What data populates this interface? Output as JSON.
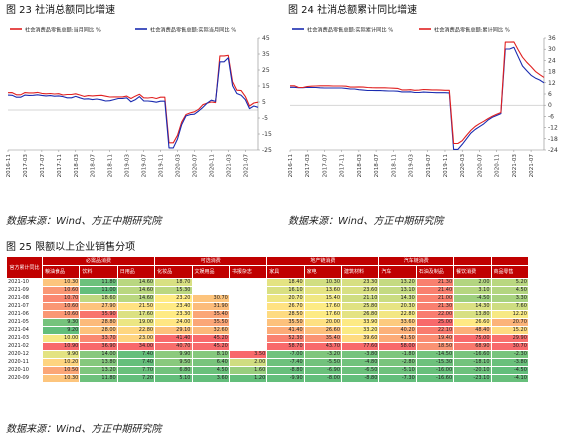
{
  "figures": {
    "fig23": {
      "title": "图 23   社消总额同比增速",
      "source": "数据来源：Wind、方正中期研究院"
    },
    "fig24": {
      "title": "图 24   社消总额累计同比增速",
      "source": "数据来源：Wind、方正中期研究院"
    },
    "fig25": {
      "title": "图 25   限额以上企业销售分项",
      "source": "数据来源：Wind、方正中期研究院"
    }
  },
  "colors": {
    "red": "#e02020",
    "blue": "#1a2bb0",
    "axis": "#666666",
    "header": "#c00000"
  },
  "chart_data": [
    {
      "type": "line",
      "x": [
        "2016-11",
        "2016-12",
        "2017-01",
        "2017-02",
        "2017-03",
        "2017-04",
        "2017-05",
        "2017-06",
        "2017-07",
        "2017-08",
        "2017-09",
        "2017-10",
        "2017-11",
        "2017-12",
        "2018-01",
        "2018-02",
        "2018-03",
        "2018-04",
        "2018-05",
        "2018-06",
        "2018-07",
        "2018-08",
        "2018-09",
        "2018-10",
        "2018-11",
        "2018-12",
        "2019-01",
        "2019-02",
        "2019-03",
        "2019-04",
        "2019-05",
        "2019-06",
        "2019-07",
        "2019-08",
        "2019-09",
        "2019-10",
        "2019-11",
        "2019-12",
        "2020-01",
        "2020-02",
        "2020-03",
        "2020-04",
        "2020-05",
        "2020-06",
        "2020-07",
        "2020-08",
        "2020-09",
        "2020-10",
        "2020-11",
        "2020-12",
        "2021-01",
        "2021-02",
        "2021-03",
        "2021-04",
        "2021-05",
        "2021-06",
        "2021-07",
        "2021-08",
        "2021-09",
        "2021-10"
      ],
      "xticks": [
        "2016-11",
        "2017-03",
        "2017-07",
        "2017-11",
        "2018-03",
        "2018-07",
        "2018-11",
        "2019-03",
        "2019-07",
        "2019-11",
        "2020-03",
        "2020-07",
        "2020-11",
        "2021-03",
        "2021-07"
      ],
      "x_tick_labels": [
        "2016-11",
        "2017-03",
        "2017-07",
        "2017-11",
        "2018-03",
        "2018-07",
        "2018-11",
        "2019-03",
        "2019-07",
        "2019-11",
        "2020-03",
        "2020-07",
        "2020-11",
        "2021-03",
        "2021-07"
      ],
      "ylim": [
        -25,
        45
      ],
      "yticks": [
        -25,
        -15,
        -5,
        5,
        15,
        25,
        35,
        45
      ],
      "legend_position": "top",
      "series": [
        {
          "name": "社会消费品零售总额:当月同比  %",
          "color": "#e02020",
          "values": [
            10.8,
            10.9,
            9.5,
            9.5,
            10.9,
            10.7,
            10.7,
            11.0,
            10.4,
            10.1,
            10.3,
            10.0,
            10.2,
            9.4,
            9.7,
            9.7,
            10.1,
            9.4,
            8.5,
            9.0,
            8.8,
            9.0,
            9.2,
            8.6,
            8.1,
            8.2,
            8.2,
            8.2,
            8.7,
            7.2,
            8.6,
            9.8,
            7.6,
            7.5,
            7.8,
            7.2,
            8.0,
            8.0,
            -20.5,
            -20.5,
            -15.8,
            -7.5,
            -2.8,
            -1.8,
            -1.1,
            0.5,
            3.3,
            4.3,
            5.0,
            4.6,
            33.8,
            33.8,
            34.2,
            17.7,
            12.4,
            12.1,
            8.5,
            2.5,
            4.4,
            4.9
          ]
        },
        {
          "name": "社会消费品零售总额:实际当月同比  %",
          "color": "#1a2bb0",
          "values": [
            9.3,
            9.2,
            8.0,
            8.0,
            9.3,
            9.1,
            9.2,
            9.5,
            9.1,
            8.8,
            9.0,
            8.6,
            8.8,
            8.4,
            7.6,
            7.6,
            8.5,
            7.6,
            6.8,
            7.0,
            6.5,
            6.9,
            6.4,
            5.6,
            5.8,
            6.5,
            7.2,
            7.2,
            7.6,
            5.1,
            6.4,
            8.4,
            5.7,
            5.6,
            5.4,
            4.9,
            5.5,
            5.5,
            -23.7,
            -23.7,
            -18.1,
            -9.1,
            -3.7,
            -2.9,
            -2.6,
            -0.6,
            1.6,
            4.3,
            6.1,
            5.4,
            30.1,
            30.1,
            32.6,
            15.2,
            10.3,
            9.2,
            6.5,
            0.9,
            2.5,
            1.7
          ]
        }
      ]
    },
    {
      "type": "line",
      "x": [
        "2016-11",
        "2016-12",
        "2017-01",
        "2017-02",
        "2017-03",
        "2017-04",
        "2017-05",
        "2017-06",
        "2017-07",
        "2017-08",
        "2017-09",
        "2017-10",
        "2017-11",
        "2017-12",
        "2018-01",
        "2018-02",
        "2018-03",
        "2018-04",
        "2018-05",
        "2018-06",
        "2018-07",
        "2018-08",
        "2018-09",
        "2018-10",
        "2018-11",
        "2018-12",
        "2019-01",
        "2019-02",
        "2019-03",
        "2019-04",
        "2019-05",
        "2019-06",
        "2019-07",
        "2019-08",
        "2019-09",
        "2019-10",
        "2019-11",
        "2019-12",
        "2020-01",
        "2020-02",
        "2020-03",
        "2020-04",
        "2020-05",
        "2020-06",
        "2020-07",
        "2020-08",
        "2020-09",
        "2020-10",
        "2020-11",
        "2020-12",
        "2021-01",
        "2021-02",
        "2021-03",
        "2021-04",
        "2021-05",
        "2021-06",
        "2021-07",
        "2021-08",
        "2021-09",
        "2021-10"
      ],
      "xticks": [
        "2016-11",
        "2017-03",
        "2017-07",
        "2017-11",
        "2018-03",
        "2018-07",
        "2018-11",
        "2019-03",
        "2019-07",
        "2019-11",
        "2020-03",
        "2020-07",
        "2020-11",
        "2021-03",
        "2021-07"
      ],
      "x_tick_labels": [
        "2016-11",
        "2017-03",
        "2017-07",
        "2017-11",
        "2018-03",
        "2018-07",
        "2018-11",
        "2019-03",
        "2019-07",
        "2019-11",
        "2020-03",
        "2020-07",
        "2020-11",
        "2021-03",
        "2021-07"
      ],
      "ylim": [
        -24,
        36
      ],
      "yticks": [
        -24,
        -18,
        -12,
        -6,
        0,
        6,
        12,
        18,
        24,
        30,
        36
      ],
      "legend_position": "top",
      "series": [
        {
          "name": "社会消费品零售总额:实际累计同比  %",
          "color": "#1a2bb0",
          "values": [
            9.6,
            9.6,
            9.4,
            9.4,
            9.6,
            9.5,
            9.5,
            9.3,
            9.2,
            9.2,
            9.2,
            9.2,
            9.2,
            9.0,
            8.7,
            8.7,
            8.3,
            8.1,
            7.9,
            7.9,
            7.8,
            7.8,
            7.7,
            7.6,
            7.6,
            7.5,
            7.1,
            7.1,
            7.2,
            6.8,
            6.8,
            7.0,
            6.9,
            6.8,
            6.7,
            6.7,
            6.7,
            6.6,
            -23.7,
            -23.7,
            -21.0,
            -18.0,
            -15.0,
            -13.0,
            -11.5,
            -10.0,
            -8.0,
            -6.5,
            -5.5,
            -4.5,
            30.1,
            30.1,
            31.0,
            26.0,
            21.0,
            18.5,
            16.0,
            14.5,
            13.5,
            12.0
          ]
        },
        {
          "name": "社会消费品零售总额:累计同比  %",
          "color": "#e02020",
          "values": [
            10.4,
            10.4,
            9.5,
            9.5,
            10.0,
            10.2,
            10.3,
            10.4,
            10.4,
            10.4,
            10.3,
            10.3,
            10.3,
            10.2,
            9.7,
            9.7,
            9.8,
            9.7,
            9.5,
            9.4,
            9.3,
            9.3,
            9.3,
            9.2,
            9.1,
            9.0,
            8.2,
            8.2,
            8.3,
            8.0,
            8.1,
            8.4,
            8.3,
            8.2,
            8.2,
            8.1,
            8.0,
            8.0,
            -20.5,
            -20.5,
            -19.0,
            -16.2,
            -13.5,
            -11.4,
            -9.9,
            -8.6,
            -7.2,
            -5.9,
            -4.8,
            -3.9,
            33.8,
            33.8,
            33.9,
            29.6,
            25.7,
            23.0,
            20.7,
            18.1,
            16.4,
            14.9
          ]
        }
      ]
    },
    {
      "type": "heatmap",
      "groups": [
        {
          "label": "",
          "span": 1
        },
        {
          "label": "必需品消费",
          "span": 3
        },
        {
          "label": "可选消费",
          "span": 3
        },
        {
          "label": "地产链消费",
          "span": 3
        },
        {
          "label": "汽车链消费",
          "span": 2
        },
        {
          "label": "",
          "span": 1
        },
        {
          "label": "",
          "span": 1
        }
      ],
      "columns": [
        "粮油食品",
        "饮料",
        "日用品",
        "化妆品",
        "文娱用品",
        "书报杂志",
        "家具",
        "家电",
        "建筑材料",
        "汽车",
        "石油及制品",
        "餐饮消费",
        "商品零售"
      ],
      "corner_label": "官方累计同比",
      "rows": [
        {
          "date": "2021-10",
          "values": [
            "10.30",
            "11.80",
            "14.60",
            "18.70",
            "",
            "",
            "18.40",
            "10.30",
            "23.30",
            "13.20",
            "21.30",
            "2.00",
            "5.20"
          ]
        },
        {
          "date": "2021-09",
          "values": [
            "10.60",
            "11.00",
            "14.60",
            "15.30",
            "",
            "",
            "16.10",
            "13.60",
            "23.60",
            "13.10",
            "21.40",
            "3.10",
            "4.50"
          ]
        },
        {
          "date": "2021-08",
          "values": [
            "10.70",
            "18.60",
            "14.60",
            "23.20",
            "30.70",
            "",
            "20.70",
            "15.40",
            "21.10",
            "14.30",
            "21.00",
            "-4.50",
            "3.30"
          ]
        },
        {
          "date": "2021-07",
          "values": [
            "10.60",
            "27.90",
            "21.50",
            "23.40",
            "31.90",
            "",
            "26.70",
            "17.60",
            "25.80",
            "20.30",
            "21.30",
            "14.30",
            "7.60"
          ]
        },
        {
          "date": "2021-06",
          "values": [
            "10.60",
            "35.90",
            "17.60",
            "23.30",
            "35.40",
            "",
            "28.50",
            "17.60",
            "26.80",
            "22.80",
            "22.00",
            "13.80",
            "12.20"
          ]
        },
        {
          "date": "2021-05",
          "values": [
            "9.30",
            "28.80",
            "19.00",
            "24.00",
            "35.50",
            "",
            "35.50",
            "20.00",
            "33.90",
            "33.60",
            "25.00",
            "26.60",
            "20.70"
          ]
        },
        {
          "date": "2021-04",
          "values": [
            "9.20",
            "28.00",
            "22.80",
            "29.10",
            "32.60",
            "",
            "41.40",
            "26.60",
            "33.20",
            "40.20",
            "22.10",
            "48.40",
            "15.20"
          ]
        },
        {
          "date": "2021-03",
          "values": [
            "10.00",
            "33.70",
            "23.00",
            "41.40",
            "45.20",
            "",
            "52.30",
            "35.40",
            "39.60",
            "41.50",
            "19.40",
            "75.00",
            "29.90"
          ]
        },
        {
          "date": "2021-02",
          "values": [
            "10.90",
            "36.90",
            "34.00",
            "40.70",
            "45.20",
            "",
            "58.70",
            "43.70",
            "77.60",
            "58.00",
            "18.50",
            "68.90",
            "30.70"
          ]
        },
        {
          "date": "2020-12",
          "values": [
            "9.90",
            "14.00",
            "7.40",
            "9.90",
            "8.10",
            "3.50",
            "-7.00",
            "-3.20",
            "-3.80",
            "-1.80",
            "-14.50",
            "-16.60",
            "-2.30"
          ]
        },
        {
          "date": "2020-11",
          "values": [
            "10.20",
            "13.80",
            "7.40",
            "9.50",
            "6.40",
            "2.00",
            "-7.40",
            "-5.50",
            "-4.80",
            "-2.80",
            "-15.30",
            "-18.10",
            "-3.80"
          ]
        },
        {
          "date": "2020-10",
          "values": [
            "10.50",
            "13.20",
            "7.70",
            "6.80",
            "4.50",
            "1.60",
            "-8.80",
            "-6.90",
            "-6.50",
            "-5.10",
            "-16.00",
            "-20.10",
            "-4.50"
          ]
        },
        {
          "date": "2020-09",
          "values": [
            "10.30",
            "11.80",
            "7.20",
            "5.10",
            "3.60",
            "1.20",
            "-9.90",
            "-8.00",
            "-8.80",
            "-7.30",
            "-16.60",
            "-23.10",
            "-4.10"
          ]
        }
      ]
    }
  ]
}
